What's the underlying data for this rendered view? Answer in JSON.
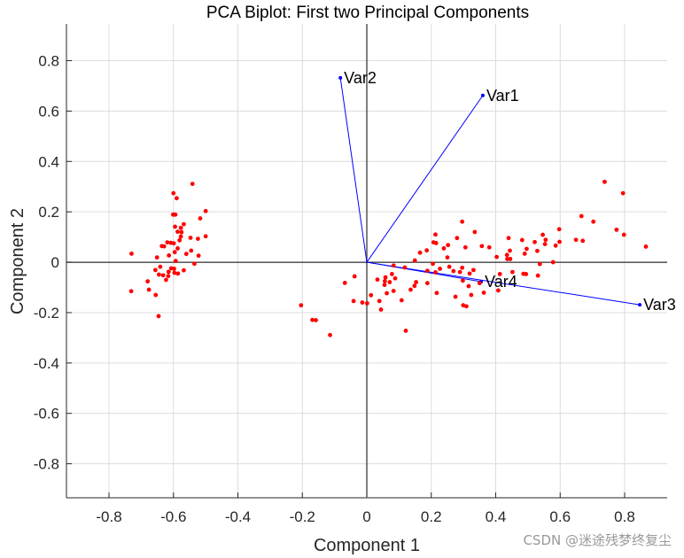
{
  "chart_data": {
    "type": "scatter",
    "title": "PCA Biplot: First two Principal Components",
    "xlabel": "Component 1",
    "ylabel": "Component 2",
    "xlim": [
      -0.932,
      0.932
    ],
    "ylim": [
      -0.935,
      0.946
    ],
    "xticks": [
      -0.8,
      -0.6,
      -0.4,
      -0.2,
      0,
      0.2,
      0.4,
      0.6,
      0.8
    ],
    "yticks": [
      -0.8,
      -0.6,
      -0.4,
      -0.2,
      0,
      0.2,
      0.4,
      0.6,
      0.8
    ],
    "xtick_labels": [
      "-0.8",
      "-0.6",
      "-0.4",
      "-0.2",
      "0",
      "0.2",
      "0.4",
      "0.6",
      "0.8"
    ],
    "ytick_labels": [
      "-0.8",
      "-0.6",
      "-0.4",
      "-0.2",
      "0",
      "0.2",
      "0.4",
      "0.6",
      "0.8"
    ],
    "grid": true,
    "colors": {
      "points": "#ff0000",
      "vectors": "#0000ff",
      "axes": "#000000",
      "grid": "#dcdcdc"
    },
    "vectors": [
      {
        "name": "Var1",
        "x": 0.36,
        "y": 0.662
      },
      {
        "name": "Var2",
        "x": -0.082,
        "y": 0.732
      },
      {
        "name": "Var3",
        "x": 0.847,
        "y": -0.169
      },
      {
        "name": "Var4",
        "x": 0.355,
        "y": -0.077
      }
    ],
    "points": [
      [
        -0.541,
        0.311
      ],
      [
        -0.6,
        0.274
      ],
      [
        -0.59,
        0.254
      ],
      [
        -0.5,
        0.203
      ],
      [
        -0.601,
        0.189
      ],
      [
        -0.594,
        0.189
      ],
      [
        -0.517,
        0.174
      ],
      [
        -0.568,
        0.151
      ],
      [
        -0.595,
        0.141
      ],
      [
        -0.577,
        0.136
      ],
      [
        -0.587,
        0.121
      ],
      [
        -0.575,
        0.119
      ],
      [
        -0.5,
        0.103
      ],
      [
        -0.577,
        0.102
      ],
      [
        -0.547,
        0.097
      ],
      [
        -0.524,
        0.093
      ],
      [
        -0.581,
        0.087
      ],
      [
        -0.619,
        0.079
      ],
      [
        -0.608,
        0.077
      ],
      [
        -0.599,
        0.075
      ],
      [
        -0.636,
        0.064
      ],
      [
        -0.629,
        0.063
      ],
      [
        -0.587,
        0.055
      ],
      [
        -0.545,
        0.046
      ],
      [
        -0.596,
        0.04
      ],
      [
        -0.73,
        0.034
      ],
      [
        -0.56,
        0.033
      ],
      [
        -0.614,
        0.027
      ],
      [
        -0.522,
        0.026
      ],
      [
        -0.651,
        0.019
      ],
      [
        -0.593,
        0.005
      ],
      [
        -0.535,
        -0.006
      ],
      [
        -0.641,
        -0.018
      ],
      [
        -0.607,
        -0.024
      ],
      [
        -0.598,
        -0.026
      ],
      [
        -0.656,
        -0.031
      ],
      [
        -0.615,
        -0.038
      ],
      [
        -0.568,
        -0.032
      ],
      [
        -0.597,
        -0.042
      ],
      [
        -0.586,
        -0.045
      ],
      [
        -0.645,
        -0.049
      ],
      [
        -0.632,
        -0.052
      ],
      [
        -0.616,
        -0.055
      ],
      [
        -0.623,
        -0.07
      ],
      [
        -0.68,
        -0.076
      ],
      [
        -0.731,
        -0.115
      ],
      [
        -0.676,
        -0.109
      ],
      [
        -0.655,
        -0.13
      ],
      [
        -0.646,
        -0.214
      ],
      [
        0.738,
        0.319
      ],
      [
        0.795,
        0.274
      ],
      [
        0.666,
        0.183
      ],
      [
        0.703,
        0.161
      ],
      [
        0.775,
        0.129
      ],
      [
        0.798,
        0.109
      ],
      [
        0.866,
        0.062
      ],
      [
        0.296,
        0.161
      ],
      [
        0.335,
        0.12
      ],
      [
        0.306,
        0.059
      ],
      [
        0.357,
        0.064
      ],
      [
        0.38,
        0.059
      ],
      [
        0.44,
        0.096
      ],
      [
        0.482,
        0.088
      ],
      [
        0.521,
        0.08
      ],
      [
        0.546,
        0.109
      ],
      [
        0.555,
        0.089
      ],
      [
        0.553,
        0.072
      ],
      [
        0.597,
        0.131
      ],
      [
        0.598,
        0.081
      ],
      [
        0.586,
        0.066
      ],
      [
        0.649,
        0.089
      ],
      [
        0.67,
        0.085
      ],
      [
        0.444,
        0.046
      ],
      [
        0.496,
        0.053
      ],
      [
        0.49,
        0.034
      ],
      [
        0.529,
        0.045
      ],
      [
        0.403,
        0.021
      ],
      [
        0.435,
        0.029
      ],
      [
        0.436,
        0.013
      ],
      [
        0.445,
        0.013
      ],
      [
        0.578,
        0.0
      ],
      [
        0.537,
        -0.007
      ],
      [
        0.452,
        -0.039
      ],
      [
        0.413,
        -0.047
      ],
      [
        0.486,
        -0.046
      ],
      [
        0.494,
        -0.047
      ],
      [
        0.531,
        -0.053
      ],
      [
        0.408,
        -0.112
      ],
      [
        0.363,
        -0.121
      ],
      [
        0.324,
        -0.13
      ],
      [
        0.35,
        -0.083
      ],
      [
        0.316,
        -0.095
      ],
      [
        0.319,
        -0.045
      ],
      [
        0.331,
        -0.031
      ],
      [
        0.296,
        -0.022
      ],
      [
        0.298,
        -0.073
      ],
      [
        0.299,
        -0.171
      ],
      [
        0.309,
        -0.175
      ],
      [
        0.213,
        0.11
      ],
      [
        0.207,
        0.079
      ],
      [
        0.215,
        0.076
      ],
      [
        0.28,
        0.096
      ],
      [
        0.252,
        0.068
      ],
      [
        0.239,
        0.055
      ],
      [
        0.186,
        0.047
      ],
      [
        0.165,
        0.038
      ],
      [
        0.25,
        0.019
      ],
      [
        0.149,
        0.007
      ],
      [
        0.205,
        -0.006
      ],
      [
        0.256,
        -0.018
      ],
      [
        0.227,
        -0.026
      ],
      [
        0.269,
        -0.035
      ],
      [
        0.289,
        -0.039
      ],
      [
        0.083,
        -0.013
      ],
      [
        0.118,
        -0.021
      ],
      [
        0.188,
        -0.034
      ],
      [
        0.213,
        -0.04
      ],
      [
        -0.038,
        -0.056
      ],
      [
        -0.068,
        -0.082
      ],
      [
        0.033,
        -0.069
      ],
      [
        0.058,
        -0.06
      ],
      [
        0.056,
        -0.075
      ],
      [
        0.078,
        -0.047
      ],
      [
        0.088,
        -0.064
      ],
      [
        0.071,
        -0.079
      ],
      [
        0.055,
        -0.09
      ],
      [
        0.153,
        -0.079
      ],
      [
        0.148,
        -0.094
      ],
      [
        0.188,
        -0.083
      ],
      [
        0.136,
        -0.109
      ],
      [
        0.083,
        -0.114
      ],
      [
        0.062,
        -0.123
      ],
      [
        0.217,
        -0.122
      ],
      [
        0.013,
        -0.131
      ],
      [
        0.275,
        -0.137
      ],
      [
        -0.041,
        -0.154
      ],
      [
        -0.014,
        -0.16
      ],
      [
        0.001,
        -0.163
      ],
      [
        0.039,
        -0.154
      ],
      [
        0.108,
        -0.151
      ],
      [
        0.044,
        -0.188
      ],
      [
        -0.204,
        -0.171
      ],
      [
        -0.169,
        -0.229
      ],
      [
        -0.158,
        -0.23
      ],
      [
        -0.114,
        -0.289
      ],
      [
        0.121,
        -0.272
      ]
    ]
  },
  "watermark": "CSDN @迷途残梦终复尘"
}
